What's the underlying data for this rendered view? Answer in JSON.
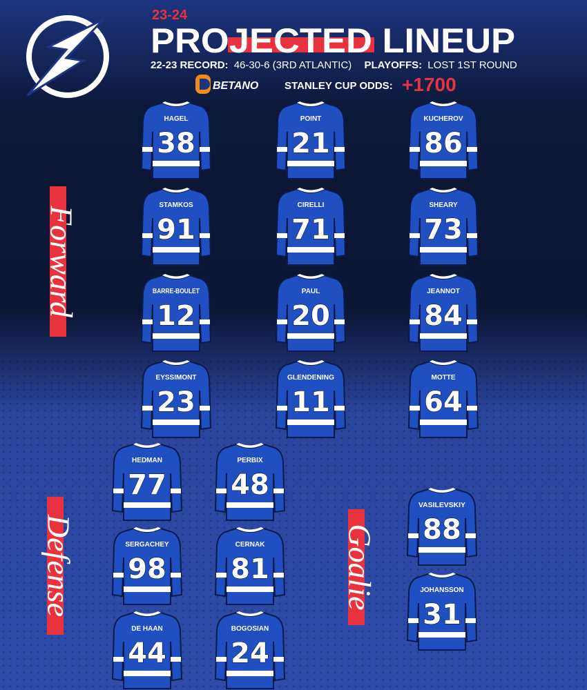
{
  "header": {
    "season": "23-24",
    "title": "PROJECTED LINEUP",
    "record_label": "22-23 RECORD:",
    "record": "46-30-6 (3RD ATLANTIC)",
    "playoffs_label": "PLAYOFFS:",
    "playoffs": "LOST 1ST ROUND",
    "sponsor": "BETANO",
    "odds_label": "STANLEY CUP ODDS:",
    "odds": "+1700"
  },
  "forwards": {
    "label": "Forward",
    "players": [
      {
        "name": "HAGEL",
        "number": 38
      },
      {
        "name": "POINT",
        "number": 21
      },
      {
        "name": "KUCHEROV",
        "number": 86
      },
      {
        "name": "STAMKOS",
        "number": 91
      },
      {
        "name": "CIRELLI",
        "number": 71
      },
      {
        "name": "SHEARY",
        "number": 73
      },
      {
        "name": "BARRE-BOULET",
        "number": 12
      },
      {
        "name": "PAUL",
        "number": 20
      },
      {
        "name": "JEANNOT",
        "number": 84
      },
      {
        "name": "EYSSIMONT",
        "number": 23
      },
      {
        "name": "GLENDENING",
        "number": 11
      },
      {
        "name": "MOTTE",
        "number": 64
      }
    ]
  },
  "defense": {
    "label": "Defense",
    "players": [
      {
        "name": "HEDMAN",
        "number": 77
      },
      {
        "name": "PERBIX",
        "number": 48
      },
      {
        "name": "SERGACHEY",
        "number": 98
      },
      {
        "name": "CERNAK",
        "number": 81
      },
      {
        "name": "DE HAAN",
        "number": 44
      },
      {
        "name": "BOGOSIAN",
        "number": 24
      }
    ]
  },
  "goalies": {
    "label": "Goalie",
    "players": [
      {
        "name": "VASILEVSKIY",
        "number": 88
      },
      {
        "name": "JOHANSSON",
        "number": 31
      }
    ]
  }
}
